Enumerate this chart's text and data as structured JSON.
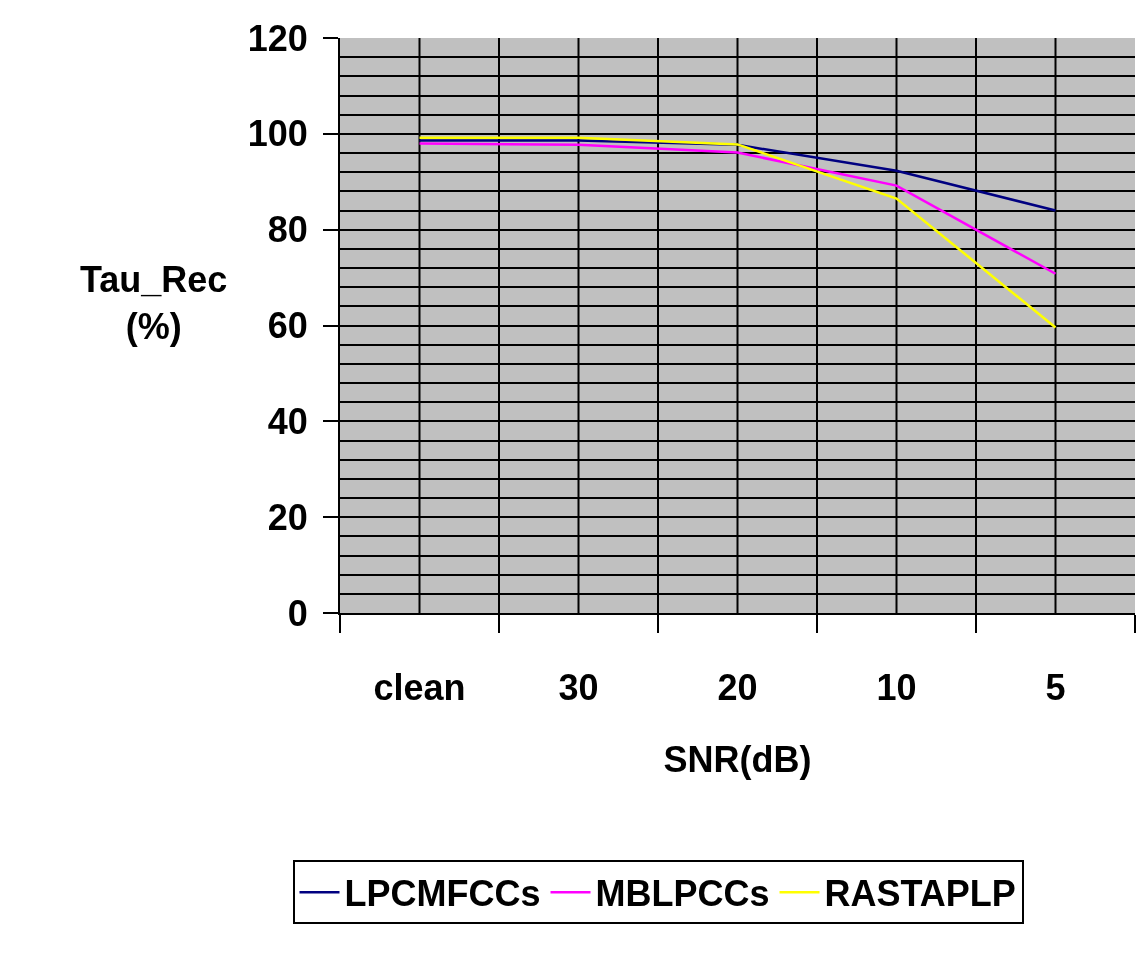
{
  "chart_data": {
    "type": "line",
    "xlabel": "SNR(dB)",
    "ylabel": "Tau_Rec (%)",
    "categories": [
      "clean",
      "30",
      "20",
      "10",
      "5"
    ],
    "series": [
      {
        "name": "LPCMFCCs",
        "color": "#000080",
        "values": [
          98.6,
          98.6,
          97.7,
          92.3,
          84.0
        ]
      },
      {
        "name": "MBLPCCs",
        "color": "#ff00ff",
        "values": [
          98.0,
          97.7,
          96.1,
          89.2,
          70.8
        ]
      },
      {
        "name": "RASTAPLP",
        "color": "#ffff00",
        "values": [
          99.2,
          99.2,
          97.8,
          86.5,
          59.6
        ]
      }
    ],
    "ylim": [
      0,
      120
    ],
    "yticks": [
      0,
      20,
      40,
      60,
      80,
      100,
      120
    ],
    "grid": true,
    "legend": "bottom",
    "marker": "none",
    "line_style": "solid"
  }
}
